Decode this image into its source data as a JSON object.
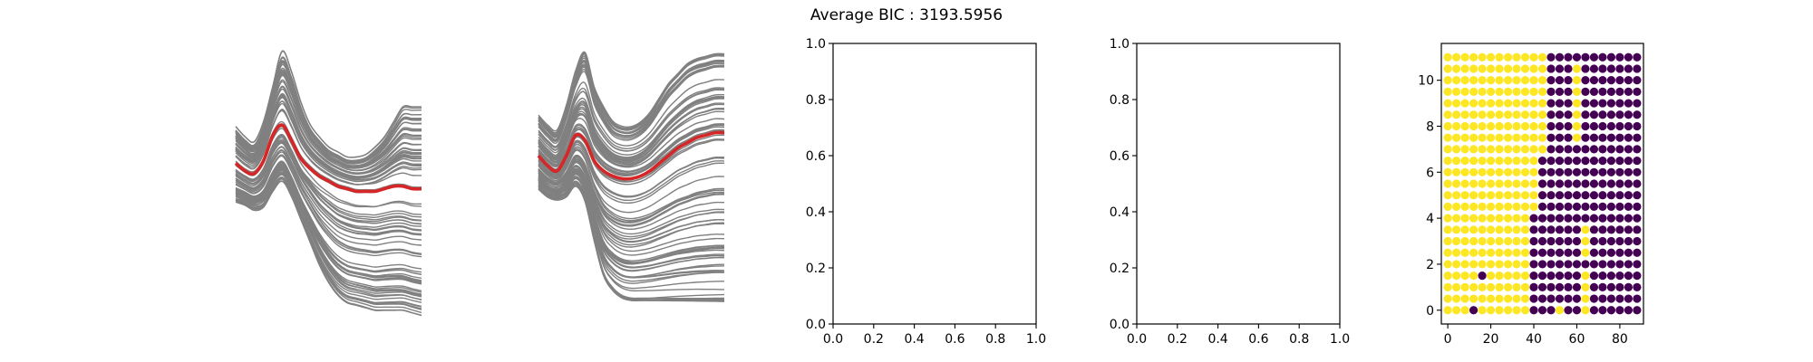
{
  "figure": {
    "suptitle": "Average BIC : 3193.5956"
  },
  "colors": {
    "background": "#ffffff",
    "member_lines": "#808080",
    "mean_line": "#d62728",
    "cluster_yellow": "#fde725",
    "cluster_purple": "#440154"
  },
  "chart_data": [
    {
      "type": "line",
      "axis": "off",
      "description_role": "cluster-curves-1",
      "x": [
        0,
        5,
        10,
        15,
        20,
        25,
        30,
        35,
        40,
        45,
        50,
        55,
        60,
        65,
        70,
        75,
        80,
        85,
        90,
        95,
        100
      ],
      "series": [
        {
          "role": "mean",
          "values": [
            0.55,
            0.52,
            0.51,
            0.56,
            0.66,
            0.7,
            0.64,
            0.57,
            0.53,
            0.5,
            0.48,
            0.46,
            0.45,
            0.44,
            0.44,
            0.44,
            0.45,
            0.46,
            0.46,
            0.45,
            0.45
          ]
        },
        {
          "role": "member-envelope-upper",
          "values": [
            0.7,
            0.66,
            0.64,
            0.72,
            0.86,
            1.0,
            0.92,
            0.8,
            0.71,
            0.66,
            0.62,
            0.6,
            0.58,
            0.58,
            0.59,
            0.62,
            0.66,
            0.72,
            0.78,
            0.78,
            0.78
          ]
        },
        {
          "role": "member-envelope-lower",
          "values": [
            0.4,
            0.39,
            0.37,
            0.38,
            0.44,
            0.48,
            0.42,
            0.33,
            0.24,
            0.15,
            0.08,
            0.03,
            0.0,
            -0.01,
            -0.02,
            -0.03,
            -0.03,
            -0.03,
            -0.03,
            -0.04,
            -0.05
          ]
        }
      ]
    },
    {
      "type": "line",
      "axis": "off",
      "description_role": "cluster-curves-2",
      "x": [
        0,
        5,
        10,
        15,
        20,
        25,
        30,
        35,
        40,
        45,
        50,
        55,
        60,
        65,
        70,
        75,
        80,
        85,
        90,
        95,
        100
      ],
      "series": [
        {
          "role": "mean",
          "values": [
            0.58,
            0.54,
            0.52,
            0.58,
            0.66,
            0.64,
            0.56,
            0.52,
            0.5,
            0.49,
            0.49,
            0.5,
            0.52,
            0.55,
            0.58,
            0.61,
            0.63,
            0.65,
            0.66,
            0.67,
            0.67
          ]
        },
        {
          "role": "member-envelope-upper",
          "values": [
            0.74,
            0.7,
            0.68,
            0.78,
            0.92,
            1.0,
            0.86,
            0.78,
            0.72,
            0.7,
            0.7,
            0.72,
            0.76,
            0.82,
            0.88,
            0.92,
            0.96,
            0.98,
            0.99,
            1.0,
            1.0
          ]
        },
        {
          "role": "member-envelope-lower",
          "values": [
            0.45,
            0.42,
            0.41,
            0.42,
            0.46,
            0.4,
            0.24,
            0.1,
            0.04,
            0.01,
            0.0,
            0.0,
            0.0,
            0.0,
            0.0,
            0.0,
            0.0,
            0.0,
            0.0,
            0.0,
            0.0
          ]
        }
      ]
    },
    {
      "type": "empty",
      "xlim": [
        0,
        1
      ],
      "ylim": [
        0,
        1
      ],
      "xticks": [
        "0.0",
        "0.2",
        "0.4",
        "0.6",
        "0.8",
        "1.0"
      ],
      "yticks": [
        "0.0",
        "0.2",
        "0.4",
        "0.6",
        "0.8",
        "1.0"
      ]
    },
    {
      "type": "empty",
      "xlim": [
        0,
        1
      ],
      "ylim": [
        0,
        1
      ],
      "xticks": [
        "0.0",
        "0.2",
        "0.4",
        "0.6",
        "0.8",
        "1.0"
      ],
      "yticks": [
        "0.0",
        "0.2",
        "0.4",
        "0.6",
        "0.8",
        "1.0"
      ]
    },
    {
      "type": "scatter",
      "xlim": [
        -3,
        91
      ],
      "ylim": [
        -0.6,
        11.6
      ],
      "xticks": [
        "0",
        "20",
        "40",
        "60",
        "80"
      ],
      "yticks": [
        "0",
        "2",
        "4",
        "6",
        "8",
        "10"
      ],
      "x_values": [
        0,
        4,
        8,
        12,
        16,
        20,
        24,
        28,
        32,
        36,
        40,
        44,
        48,
        52,
        56,
        60,
        64,
        68,
        72,
        76,
        80,
        84,
        88
      ],
      "y_values": [
        0,
        0.5,
        1,
        1.5,
        2,
        2.5,
        3,
        3.5,
        4,
        4.5,
        5,
        5.5,
        6,
        6.5,
        7,
        7.5,
        8,
        8.5,
        9,
        9.5,
        10,
        10.5,
        11
      ],
      "class_legend": {
        "Y": "yellow cluster",
        "P": "purple cluster"
      },
      "rows_top_to_bottom": [
        "YYYYYYYYYYYYPPPPPPPPPPP",
        "YYYYYYYYYYYYPPPYPPPPPPP",
        "YYYYYYYYYYYYPPPYPPPPPPP",
        "YYYYYYYYYYYYPPPYPPPPPPP",
        "YYYYYYYYYYYYPPPYPPPPPPP",
        "YYYYYYYYYYYYPPPYPPPPPPP",
        "YYYYYYYYYYYYPPPYPPPPPPP",
        "YYYYYYYYYYYYPPPYPPPPPPP",
        "YYYYYYYYYYYYPPPPPPPPPPP",
        "YYYYYYYYYYYPPPPPPPPPPPP",
        "YYYYYYYYYYYPPPPPPPPPPPP",
        "YYYYYYYYYYYPPPPPPPPPPPP",
        "YYYYYYYYYYYPPPPPPPPPPPP",
        "YYYYYYYYYYYPPPPPPPPPPPP",
        "YYYYYYYYYYPPPPPPPPPPPPP",
        "YYYYYYYYYYPPPPPPYPPPPPP",
        "YYYYYYYYYYPPPPPPYPPPPPP",
        "YYYYYYYYYYPPPPPPYPPPPPP",
        "YYYYYYYYYYPPPPPPPPPPPPP",
        "YYYYPYYYYYPPPPPPYPPPPPP",
        "YYYYYYYYYYPPPPPPYPPPPPP",
        "YYYYYYYYYYPPPPPPYPPPPPP",
        "YYYPYYYYYYPPPYPPYPPPPPP"
      ]
    }
  ]
}
